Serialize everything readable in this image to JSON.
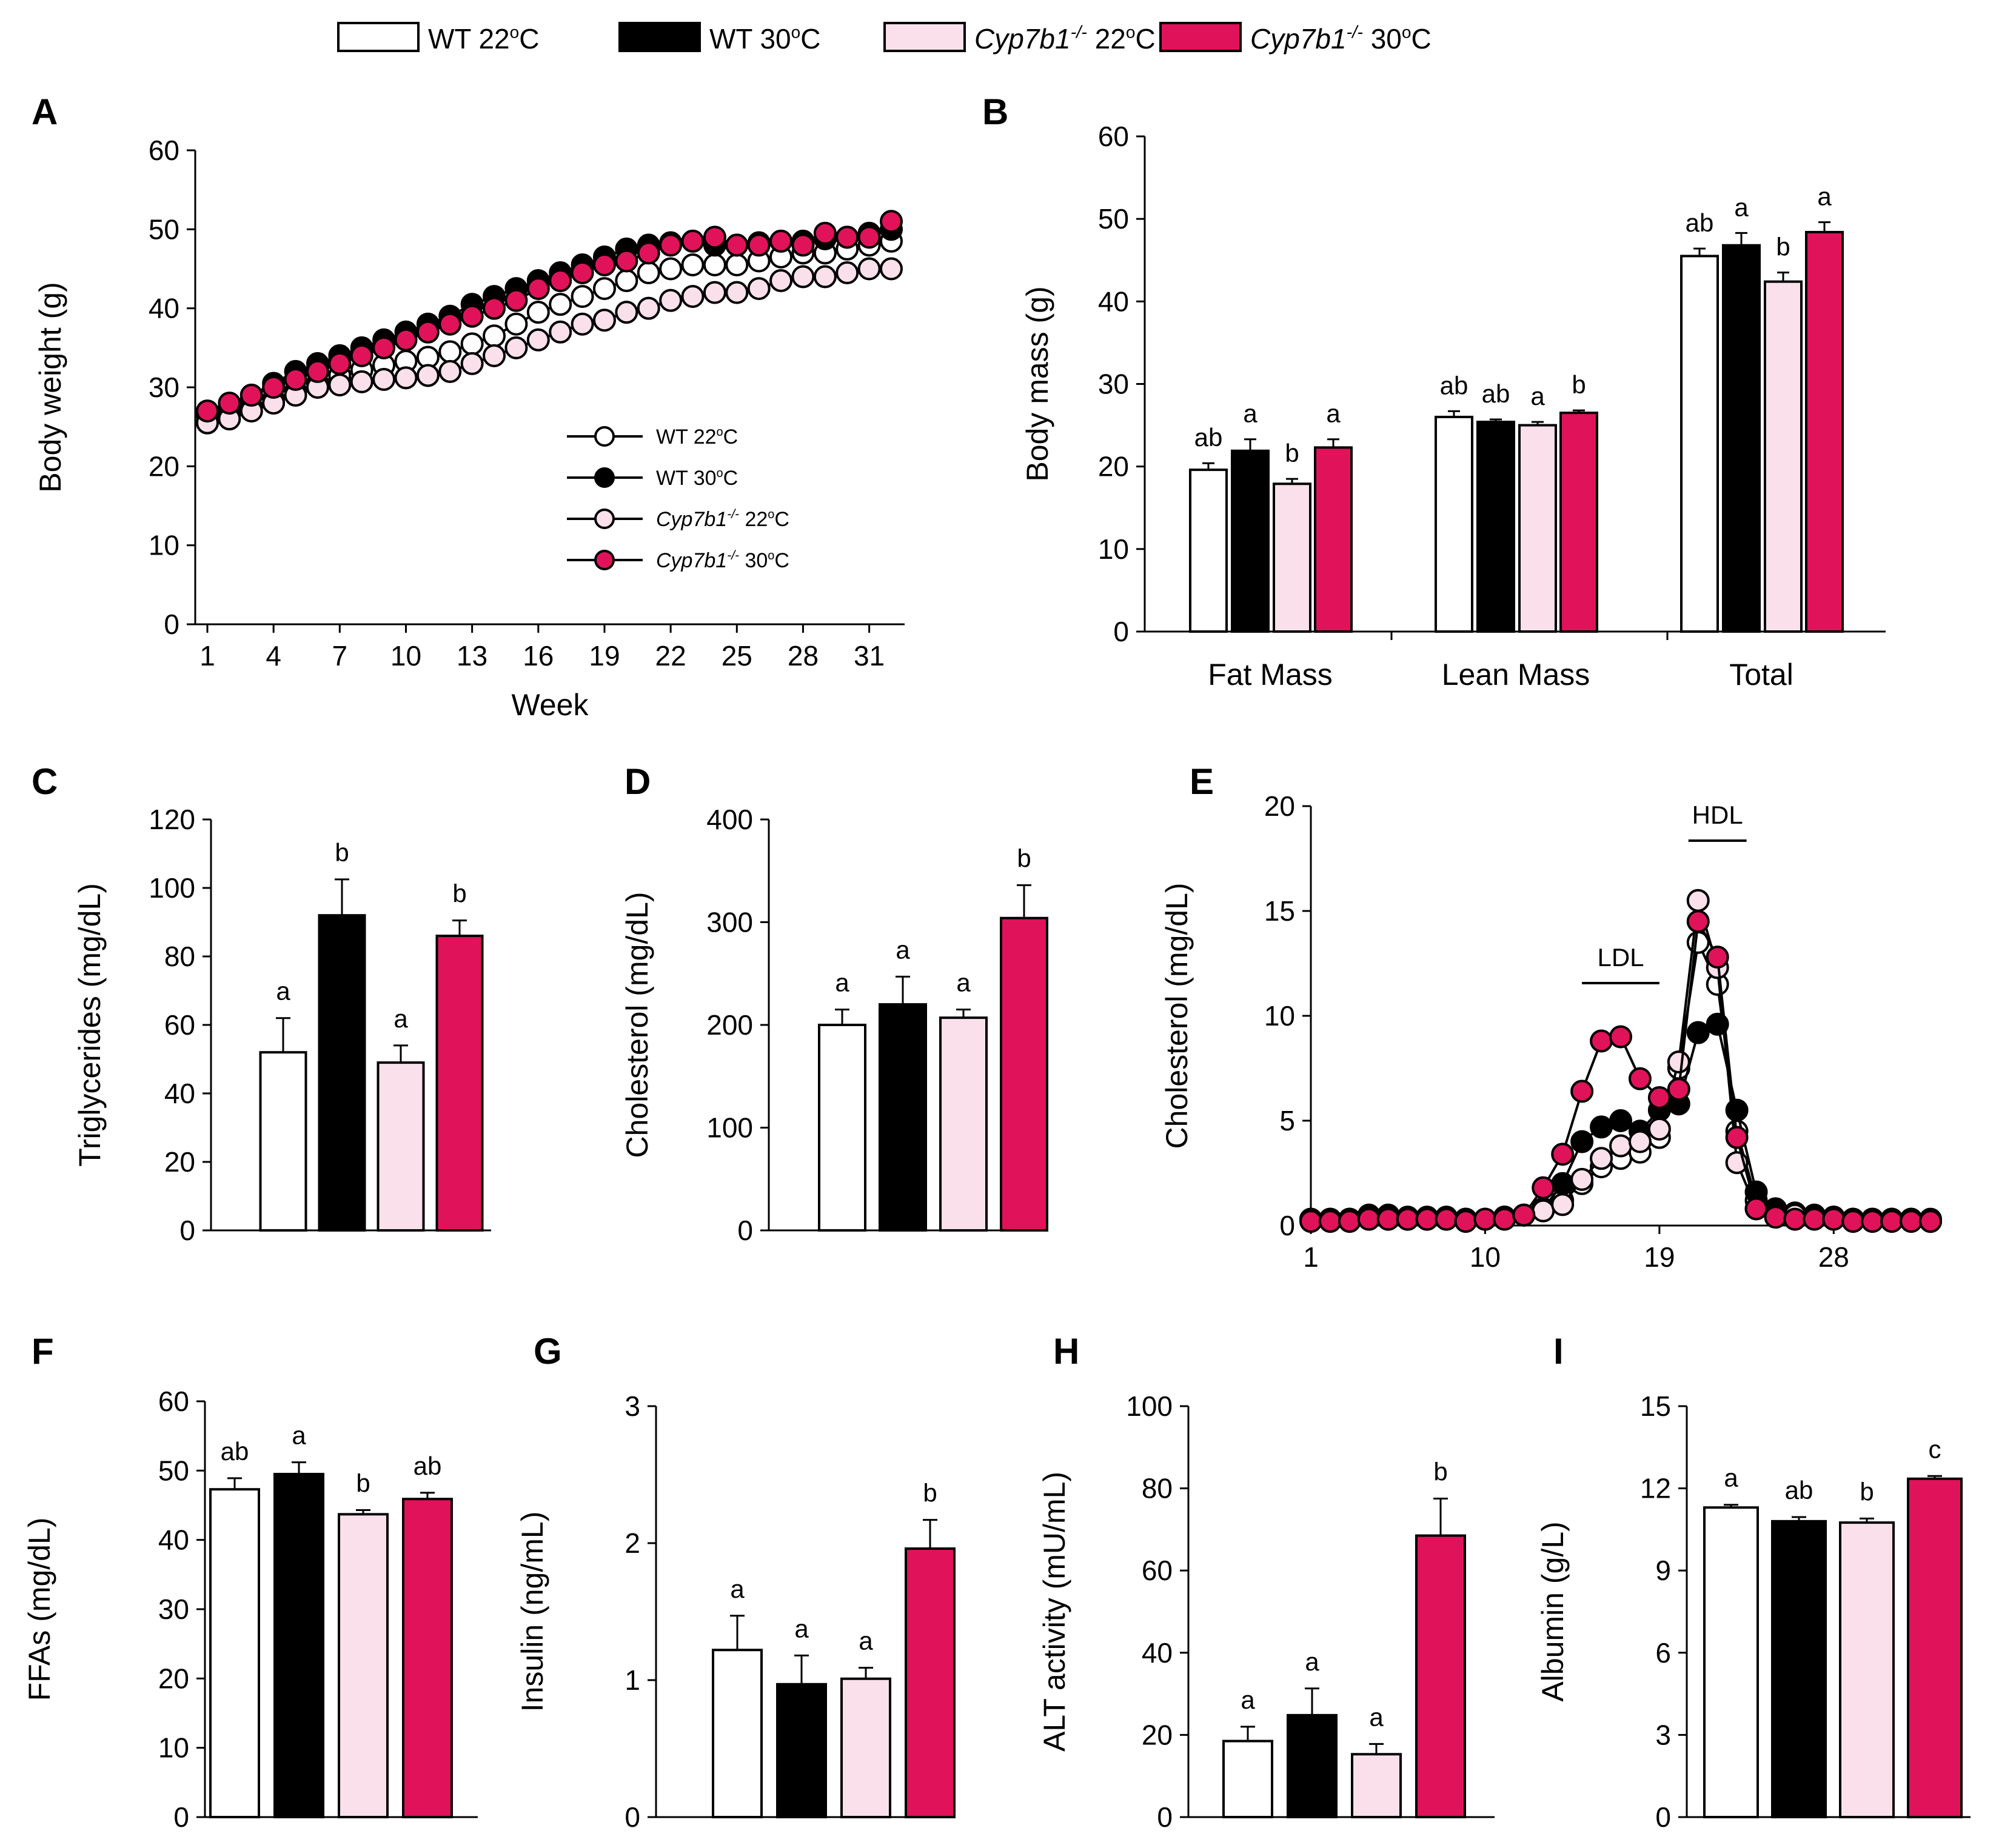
{
  "colors": {
    "wt22": "#ffffff",
    "wt30": "#000000",
    "ko22": "#f9e0ea",
    "ko30": "#e0135a",
    "stroke": "#000000"
  },
  "groups": [
    {
      "key": "wt22",
      "gene": "WT",
      "temp": "22oC",
      "italic": false
    },
    {
      "key": "wt30",
      "gene": "WT",
      "temp": "30oC",
      "italic": false
    },
    {
      "key": "ko22",
      "gene": "Cyp7b1-/-",
      "temp": "22oC",
      "italic": true
    },
    {
      "key": "ko30",
      "gene": "Cyp7b1-/-",
      "temp": "30oC",
      "italic": true
    }
  ],
  "chart_data": [
    {
      "id": "A",
      "type": "line",
      "xlabel": "Week",
      "ylabel": "Body weight (g)",
      "ylim": [
        0,
        60
      ],
      "yticks": [
        0,
        10,
        20,
        30,
        40,
        50,
        60
      ],
      "xticks": [
        1,
        4,
        7,
        10,
        13,
        16,
        19,
        22,
        25,
        28,
        31
      ],
      "xlim": [
        1,
        32
      ],
      "legend_position": "inside-bottom-right",
      "x": [
        1,
        2,
        3,
        4,
        5,
        6,
        7,
        8,
        9,
        10,
        11,
        12,
        13,
        14,
        15,
        16,
        17,
        18,
        19,
        20,
        21,
        22,
        23,
        24,
        25,
        26,
        27,
        28,
        29,
        30,
        31,
        32
      ],
      "series": [
        {
          "name": "WT 22oC",
          "key": "wt22",
          "values": [
            25.5,
            26.5,
            27.5,
            28.5,
            29.5,
            30.5,
            31.5,
            32.2,
            32.8,
            33.3,
            33.8,
            34.5,
            35.5,
            36.5,
            38,
            39.5,
            40.5,
            41.5,
            42.5,
            43.5,
            44.5,
            45,
            45.5,
            45.5,
            45.5,
            46,
            46.5,
            47,
            47,
            47.5,
            48,
            48.5
          ]
        },
        {
          "name": "WT 30oC",
          "key": "wt30",
          "values": [
            26.5,
            27.5,
            29,
            30.5,
            32,
            33,
            34,
            35,
            36,
            37,
            38,
            39,
            40.5,
            41.5,
            42.5,
            43.5,
            44.5,
            45.5,
            46.5,
            47.5,
            48,
            48.3,
            48.5,
            48,
            48,
            48.3,
            48.5,
            48.5,
            48.8,
            49,
            49.5,
            50
          ]
        },
        {
          "name": "Cyp7b1-/- 22oC",
          "key": "ko22",
          "values": [
            25.5,
            26,
            27,
            28,
            29,
            30,
            30.3,
            30.7,
            31,
            31.2,
            31.5,
            32,
            33,
            34,
            35,
            36,
            37,
            38,
            38.5,
            39.5,
            40,
            41,
            41.5,
            42,
            42,
            42.5,
            43.5,
            44,
            44,
            44.5,
            45,
            45
          ]
        },
        {
          "name": "Cyp7b1-/- 30oC",
          "key": "ko30",
          "values": [
            27,
            28,
            29,
            30,
            31,
            32,
            33,
            34,
            35,
            36,
            37,
            38,
            39,
            40,
            41,
            42.5,
            43.5,
            44.5,
            45.5,
            46,
            47,
            48,
            48.5,
            49,
            48,
            48,
            48.5,
            48,
            49.5,
            49,
            49,
            51
          ]
        }
      ]
    },
    {
      "id": "B",
      "type": "bar",
      "ylabel": "Body mass (g)",
      "ylim": [
        0,
        60
      ],
      "yticks": [
        0,
        10,
        20,
        30,
        40,
        50,
        60
      ],
      "categories": [
        "Fat Mass",
        "Lean Mass",
        "Total"
      ],
      "series": [
        {
          "name": "WT 22oC",
          "key": "wt22",
          "values": [
            19.6,
            26,
            45.5
          ],
          "errors": [
            0.8,
            0.7,
            0.9
          ],
          "letters": [
            "ab",
            "ab",
            "ab"
          ]
        },
        {
          "name": "WT 30oC",
          "key": "wt30",
          "values": [
            21.9,
            25.4,
            46.8
          ],
          "errors": [
            1.4,
            0.3,
            1.5
          ],
          "letters": [
            "a",
            "ab",
            "a"
          ]
        },
        {
          "name": "Cyp7b1-/- 22oC",
          "key": "ko22",
          "values": [
            17.9,
            25,
            42.4
          ],
          "errors": [
            0.6,
            0.4,
            1.1
          ],
          "letters": [
            "b",
            "a",
            "b"
          ]
        },
        {
          "name": "Cyp7b1-/- 30oC",
          "key": "ko30",
          "values": [
            22.3,
            26.5,
            48.4
          ],
          "errors": [
            1,
            0.3,
            1.2
          ],
          "letters": [
            "a",
            "b",
            "a"
          ]
        }
      ]
    },
    {
      "id": "C",
      "type": "bar",
      "ylabel": "Triglycerides (mg/dL)",
      "ylim": [
        0,
        120
      ],
      "yticks": [
        0,
        20,
        40,
        60,
        80,
        100,
        120
      ],
      "values": [
        52,
        92,
        49,
        86
      ],
      "errors": [
        10,
        10.5,
        5,
        4.5
      ],
      "letters": [
        "a",
        "b",
        "a",
        "b"
      ]
    },
    {
      "id": "D",
      "type": "bar",
      "ylabel": "Cholesterol (mg/dL)",
      "ylim": [
        0,
        400
      ],
      "yticks": [
        0,
        100,
        200,
        300,
        400
      ],
      "values": [
        200,
        220,
        207,
        304
      ],
      "errors": [
        15,
        27,
        8,
        32
      ],
      "letters": [
        "a",
        "a",
        "a",
        "b"
      ]
    },
    {
      "id": "E",
      "type": "line",
      "ylabel": "Cholesterol (mg/dL)",
      "ylim": [
        0,
        20
      ],
      "yticks": [
        0,
        5,
        10,
        15,
        20
      ],
      "xticks": [
        1,
        10,
        19,
        28
      ],
      "xlim": [
        1,
        33
      ],
      "annotations": [
        {
          "text": "LDL",
          "from": 15,
          "to": 19
        },
        {
          "text": "HDL",
          "from": 20.5,
          "to": 23.5
        }
      ],
      "x": [
        1,
        2,
        3,
        4,
        5,
        6,
        7,
        8,
        9,
        10,
        11,
        12,
        13,
        14,
        15,
        16,
        17,
        18,
        19,
        20,
        21,
        22,
        23,
        24,
        25,
        26,
        27,
        28,
        29,
        30,
        31,
        32,
        33
      ],
      "series": [
        {
          "name": "WT 22oC",
          "key": "wt22",
          "values": [
            0.3,
            0.3,
            0.3,
            0.4,
            0.4,
            0.3,
            0.3,
            0.3,
            0.3,
            0.3,
            0.4,
            0.5,
            0.8,
            1.2,
            2,
            2.8,
            3.2,
            3.5,
            4.2,
            7.5,
            13.5,
            11.5,
            4.5,
            1.2,
            0.6,
            0.5,
            0.4,
            0.4,
            0.3,
            0.3,
            0.3,
            0.3,
            0.2
          ]
        },
        {
          "name": "WT 30oC",
          "key": "wt30",
          "values": [
            0.3,
            0.3,
            0.3,
            0.5,
            0.5,
            0.4,
            0.4,
            0.4,
            0.3,
            0.3,
            0.4,
            0.5,
            0.8,
            2,
            4,
            4.7,
            5,
            4.5,
            5.5,
            5.8,
            9.2,
            9.6,
            5.5,
            1.6,
            0.8,
            0.6,
            0.5,
            0.4,
            0.3,
            0.3,
            0.3,
            0.3,
            0.3
          ]
        },
        {
          "name": "Cyp7b1-/- 22oC",
          "key": "ko22",
          "values": [
            0.3,
            0.3,
            0.3,
            0.3,
            0.3,
            0.3,
            0.3,
            0.3,
            0.3,
            0.3,
            0.4,
            0.5,
            0.7,
            1,
            2.2,
            3.2,
            3.8,
            4,
            4.6,
            7.8,
            15.5,
            12.3,
            3,
            0.8,
            0.5,
            0.5,
            0.4,
            0.3,
            0.3,
            0.3,
            0.3,
            0.3,
            0.2
          ]
        },
        {
          "name": "Cyp7b1-/- 30oC",
          "key": "ko30",
          "values": [
            0.2,
            0.2,
            0.2,
            0.3,
            0.3,
            0.3,
            0.3,
            0.3,
            0.2,
            0.3,
            0.3,
            0.5,
            1.8,
            3.4,
            6.4,
            8.8,
            9,
            7,
            6.1,
            6.5,
            14.5,
            12.8,
            4.2,
            0.8,
            0.4,
            0.3,
            0.3,
            0.3,
            0.2,
            0.2,
            0.2,
            0.2,
            0.2
          ]
        }
      ]
    },
    {
      "id": "F",
      "type": "bar",
      "ylabel": "FFAs (mg/dL)",
      "ylim": [
        0,
        60
      ],
      "yticks": [
        0,
        10,
        20,
        30,
        40,
        50,
        60
      ],
      "values": [
        47.3,
        49.5,
        43.7,
        45.9
      ],
      "errors": [
        1.6,
        1.7,
        0.6,
        0.9
      ],
      "letters": [
        "ab",
        "a",
        "b",
        "ab"
      ]
    },
    {
      "id": "G",
      "type": "bar",
      "ylabel": "Insulin (ng/mL)",
      "ylim": [
        0,
        3
      ],
      "yticks": [
        0,
        1,
        2,
        3
      ],
      "values": [
        1.22,
        0.97,
        1.01,
        1.96
      ],
      "errors": [
        0.25,
        0.21,
        0.08,
        0.21
      ],
      "letters": [
        "a",
        "a",
        "a",
        "b"
      ]
    },
    {
      "id": "H",
      "type": "bar",
      "ylabel": "ALT activity (mU/mL)",
      "ylim": [
        0,
        100
      ],
      "yticks": [
        0,
        20,
        40,
        60,
        80,
        100
      ],
      "values": [
        18.5,
        24.8,
        15.3,
        68.5
      ],
      "errors": [
        3.5,
        6.5,
        2.5,
        9
      ],
      "letters": [
        "a",
        "a",
        "a",
        "b"
      ]
    },
    {
      "id": "I",
      "type": "bar",
      "ylabel": "Albumin (g/L)",
      "ylim": [
        0,
        15
      ],
      "yticks": [
        0,
        3,
        6,
        9,
        12,
        15
      ],
      "values": [
        11.3,
        10.8,
        10.75,
        12.35
      ],
      "errors": [
        0.1,
        0.15,
        0.15,
        0.1
      ],
      "letters": [
        "a",
        "ab",
        "b",
        "c"
      ]
    }
  ]
}
